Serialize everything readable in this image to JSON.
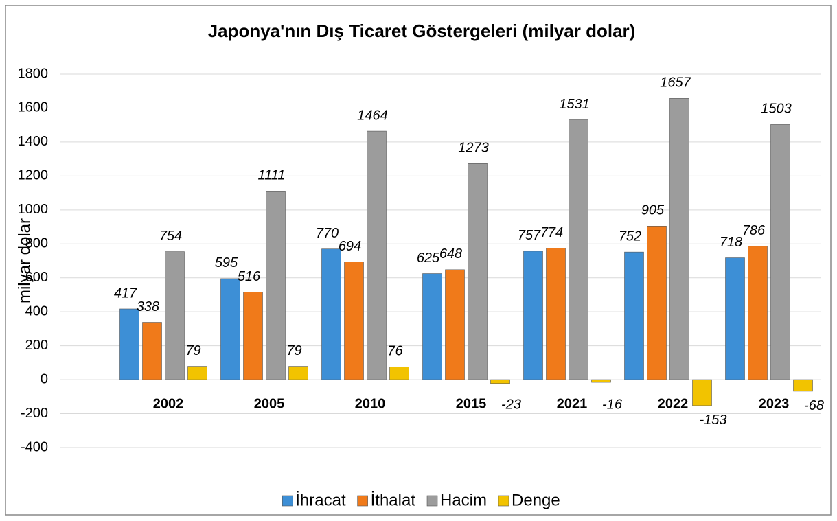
{
  "chart_data": {
    "type": "bar",
    "title": "Japonya'nın Dış Ticaret Göstergeleri  (milyar dolar)",
    "y_label": "milyar dolar",
    "categories": [
      "2002",
      "2005",
      "2010",
      "2015",
      "2021",
      "2022",
      "2023"
    ],
    "series": [
      {
        "name": "İhracat",
        "color": "#3d8fd6",
        "values": [
          417,
          595,
          770,
          625,
          757,
          752,
          718
        ]
      },
      {
        "name": "İthalat",
        "color": "#f07a1a",
        "values": [
          338,
          516,
          694,
          648,
          774,
          905,
          786
        ]
      },
      {
        "name": "Hacim",
        "color": "#9c9c9c",
        "values": [
          754,
          1111,
          1464,
          1273,
          1531,
          1657,
          1503
        ]
      },
      {
        "name": "Denge",
        "color": "#f2c300",
        "values": [
          79,
          79,
          76,
          -23,
          -16,
          -153,
          -68
        ]
      }
    ],
    "ylim": [
      -400,
      1800
    ],
    "yticks": [
      -400,
      -200,
      0,
      200,
      400,
      600,
      800,
      1000,
      1200,
      1400,
      1600,
      1800
    ],
    "grid": true,
    "legend": "bottom"
  }
}
